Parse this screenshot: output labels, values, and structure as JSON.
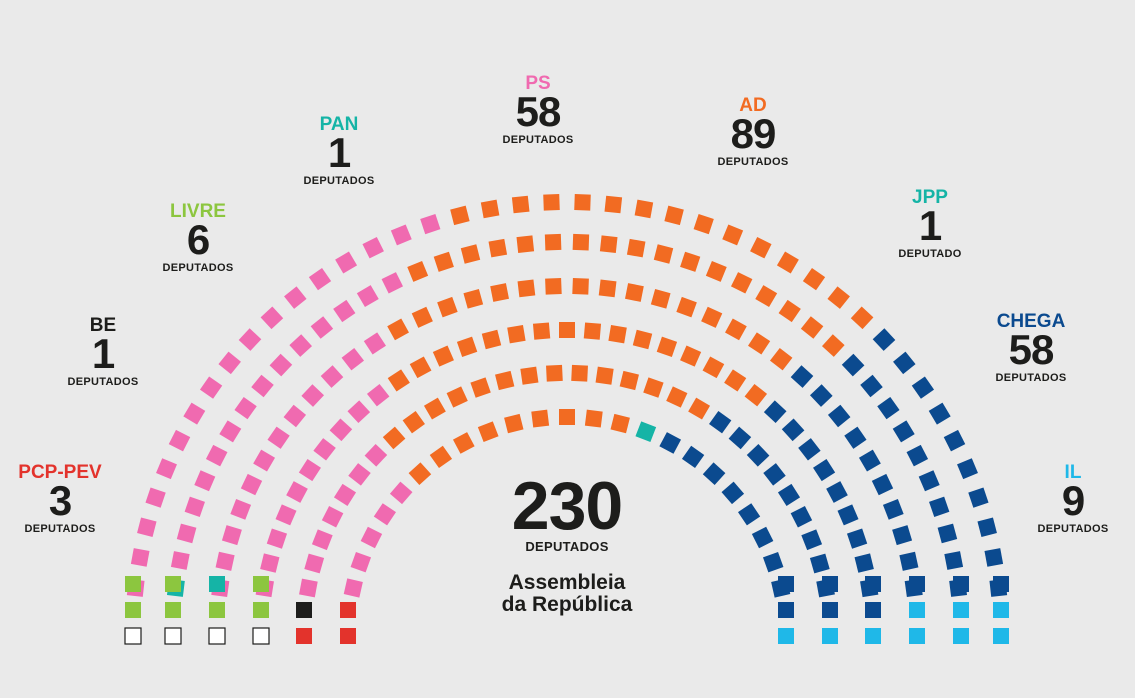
{
  "chart_data": {
    "type": "parliament",
    "total": "230",
    "total_label": "DEPUTADOS",
    "chamber_line1": "Assembleia",
    "chamber_line2": "da República",
    "parties": [
      {
        "id": "pcp",
        "name": "PCP-PEV",
        "seats": "3",
        "label": "DEPUTADOS",
        "color": "#e3332c"
      },
      {
        "id": "be",
        "name": "BE",
        "seats": "1",
        "label": "DEPUTADOS",
        "color": "#1d1d1b"
      },
      {
        "id": "livre",
        "name": "LIVRE",
        "seats": "6",
        "label": "DEPUTADOS",
        "color": "#8cc63f"
      },
      {
        "id": "pan",
        "name": "PAN",
        "seats": "1",
        "label": "DEPUTADOS",
        "color": "#15b4a6"
      },
      {
        "id": "ps",
        "name": "PS",
        "seats": "58",
        "label": "DEPUTADOS",
        "color": "#f06ab0"
      },
      {
        "id": "ad",
        "name": "AD",
        "seats": "89",
        "label": "DEPUTADOS",
        "color": "#f26b22"
      },
      {
        "id": "jpp",
        "name": "JPP",
        "seats": "1",
        "label": "DEPUTADO",
        "color": "#15b4a6"
      },
      {
        "id": "chega",
        "name": "CHEGA",
        "seats": "58",
        "label": "DEPUTADOS",
        "color": "#0b4a8f"
      },
      {
        "id": "il",
        "name": "IL",
        "seats": "9",
        "label": "DEPUTADOS",
        "color": "#1fb8e8"
      }
    ],
    "empty_seat_color": "#ffffff",
    "rows": [
      {
        "pink": 17,
        "orange": 15,
        "blue": 10
      },
      {
        "pink": 15,
        "orange": 17,
        "blue": 10
      },
      {
        "pink": 12,
        "orange": 16,
        "blue": 10
      },
      {
        "pink": 10,
        "orange": 16,
        "blue": 9
      },
      {
        "pink": 7,
        "orange": 14,
        "blue": 9
      },
      {
        "pink": 5,
        "orange": 10,
        "blue": 8
      }
    ],
    "legend_placement": "around-arc"
  }
}
